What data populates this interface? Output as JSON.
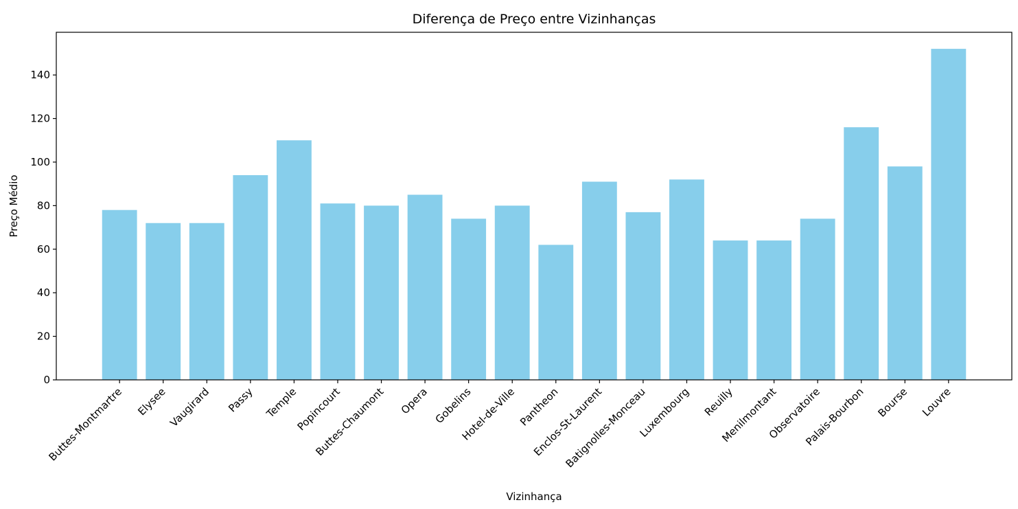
{
  "chart_data": {
    "type": "bar",
    "title": "Diferença de Preço entre Vizinhanças",
    "xlabel": "Vizinhança",
    "ylabel": "Preço Médio",
    "categories": [
      "Buttes-Montmartre",
      "Elysee",
      "Vaugirard",
      "Passy",
      "Temple",
      "Popincourt",
      "Buttes-Chaumont",
      "Opera",
      "Gobelins",
      "Hotel-de-Ville",
      "Pantheon",
      "Enclos-St-Laurent",
      "Batignolles-Monceau",
      "Luxembourg",
      "Reuilly",
      "Menilmontant",
      "Observatoire",
      "Palais-Bourbon",
      "Bourse",
      "Louvre"
    ],
    "values": [
      78,
      72,
      72,
      94,
      110,
      81,
      80,
      85,
      74,
      80,
      62,
      91,
      77,
      92,
      64,
      64,
      74,
      116,
      98,
      152
    ],
    "ylim": [
      0,
      159.6
    ],
    "yticks": [
      0,
      20,
      40,
      60,
      80,
      100,
      120,
      140
    ],
    "bar_color": "#87ceeb",
    "grid": false,
    "x_tick_rotation": 45
  }
}
